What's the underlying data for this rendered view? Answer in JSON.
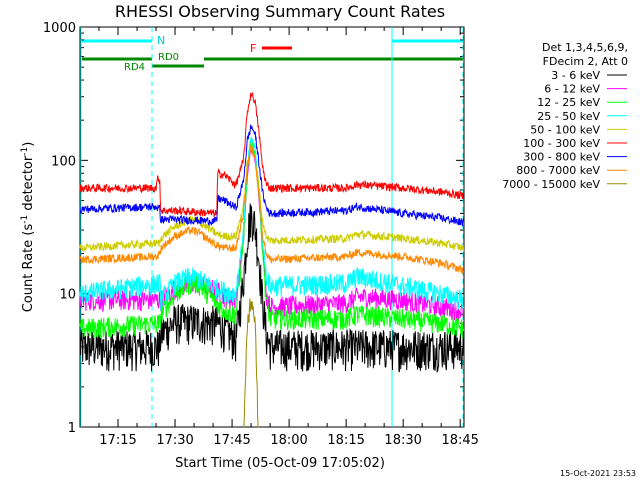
{
  "chart_data": {
    "type": "line",
    "title": "RHESSI Observing Summary Count Rates",
    "xlabel": "Start Time (05-Oct-09 17:05:02)",
    "ylabel_main": "Count Rate (s",
    "ylabel_sup1": "-1",
    "ylabel_mid": " detector",
    "ylabel_sup2": "-1",
    "ylabel_end": ")",
    "x_range_min": [
      0,
      101
    ],
    "x_ticks": [
      {
        "m": 10,
        "label": "17:15"
      },
      {
        "m": 25,
        "label": "17:30"
      },
      {
        "m": 40,
        "label": "17:45"
      },
      {
        "m": 55,
        "label": "18:00"
      },
      {
        "m": 70,
        "label": "18:15"
      },
      {
        "m": 85,
        "label": "18:30"
      },
      {
        "m": 100,
        "label": "18:45"
      }
    ],
    "y_log": true,
    "y_range": [
      1,
      1000
    ],
    "y_ticks": [
      {
        "v": 1,
        "label": "1"
      },
      {
        "v": 10,
        "label": "10"
      },
      {
        "v": 100,
        "label": "100"
      },
      {
        "v": 1000,
        "label": "1000"
      }
    ],
    "legend_header": [
      "Det 1,3,4,5,6,9,",
      "FDecim 2, Att 0"
    ],
    "series": [
      {
        "name": "3 - 6 keV",
        "color": "#000000",
        "points": [
          [
            0,
            4
          ],
          [
            21,
            4
          ],
          [
            21.2,
            5
          ],
          [
            25,
            6.2
          ],
          [
            29,
            6.2
          ],
          [
            31,
            6.2
          ],
          [
            36,
            6
          ],
          [
            38,
            5.5
          ],
          [
            41,
            4.5
          ],
          [
            43,
            13
          ],
          [
            44,
            28
          ],
          [
            45,
            40
          ],
          [
            46,
            33
          ],
          [
            47,
            19
          ],
          [
            48,
            9
          ],
          [
            49,
            5
          ],
          [
            50,
            4
          ],
          [
            70,
            4
          ],
          [
            73,
            4
          ],
          [
            85,
            4
          ],
          [
            95,
            4
          ],
          [
            101,
            4
          ]
        ]
      },
      {
        "name": "6 - 12 keV",
        "color": "#ff00ff",
        "points": [
          [
            0,
            9
          ],
          [
            21,
            9
          ],
          [
            21.2,
            9
          ],
          [
            25,
            11
          ],
          [
            29,
            12
          ],
          [
            31,
            12
          ],
          [
            36,
            10.5
          ],
          [
            38,
            9.5
          ],
          [
            41,
            9
          ],
          [
            43,
            25
          ],
          [
            44,
            75
          ],
          [
            45,
            125
          ],
          [
            46,
            105
          ],
          [
            47,
            58
          ],
          [
            48,
            22
          ],
          [
            49,
            10
          ],
          [
            50,
            8
          ],
          [
            70,
            8.5
          ],
          [
            73,
            9.5
          ],
          [
            85,
            9
          ],
          [
            95,
            8
          ],
          [
            101,
            7.5
          ]
        ]
      },
      {
        "name": "12 - 25 keV",
        "color": "#00ff00",
        "points": [
          [
            0,
            5.5
          ],
          [
            21,
            6
          ],
          [
            21.2,
            7
          ],
          [
            25,
            10
          ],
          [
            29,
            12
          ],
          [
            31,
            12
          ],
          [
            36,
            8.5
          ],
          [
            38,
            7.5
          ],
          [
            41,
            7
          ],
          [
            43,
            25
          ],
          [
            44,
            80
          ],
          [
            45,
            140
          ],
          [
            46,
            115
          ],
          [
            47,
            60
          ],
          [
            48,
            22
          ],
          [
            49,
            9
          ],
          [
            50,
            6.5
          ],
          [
            70,
            6.5
          ],
          [
            73,
            7
          ],
          [
            85,
            6.5
          ],
          [
            95,
            6
          ],
          [
            101,
            5.5
          ]
        ]
      },
      {
        "name": "25 - 50 keV",
        "color": "#00ffff",
        "points": [
          [
            0,
            10
          ],
          [
            21,
            12
          ],
          [
            21.2,
            9
          ],
          [
            25,
            12
          ],
          [
            29,
            13.5
          ],
          [
            31,
            13
          ],
          [
            36,
            11
          ],
          [
            38,
            10.5
          ],
          [
            41,
            10
          ],
          [
            43,
            30
          ],
          [
            44,
            90
          ],
          [
            45,
            150
          ],
          [
            46,
            125
          ],
          [
            47,
            65
          ],
          [
            48,
            25
          ],
          [
            49,
            14
          ],
          [
            50,
            11.5
          ],
          [
            70,
            12
          ],
          [
            73,
            13.5
          ],
          [
            85,
            11.5
          ],
          [
            95,
            10
          ],
          [
            101,
            9
          ]
        ]
      },
      {
        "name": "50 - 100 keV",
        "color": "#cccc00",
        "points": [
          [
            0,
            22
          ],
          [
            21,
            24
          ],
          [
            21.2,
            26
          ],
          [
            25,
            32
          ],
          [
            29,
            36
          ],
          [
            31,
            35
          ],
          [
            36,
            28
          ],
          [
            38,
            27
          ],
          [
            41,
            27
          ],
          [
            43,
            45
          ],
          [
            44,
            95
          ],
          [
            45,
            130
          ],
          [
            46,
            110
          ],
          [
            47,
            65
          ],
          [
            48,
            35
          ],
          [
            49,
            27
          ],
          [
            50,
            25
          ],
          [
            70,
            26
          ],
          [
            73,
            28
          ],
          [
            85,
            26
          ],
          [
            95,
            24
          ],
          [
            101,
            22
          ]
        ]
      },
      {
        "name": "100 - 300 keV",
        "color": "#ff0000",
        "points": [
          [
            0,
            62
          ],
          [
            20,
            62
          ],
          [
            20.5,
            75
          ],
          [
            21,
            70
          ],
          [
            21.2,
            42
          ],
          [
            25,
            42
          ],
          [
            36,
            40
          ],
          [
            36.2,
            80
          ],
          [
            38,
            78
          ],
          [
            41,
            65
          ],
          [
            43,
            100
          ],
          [
            44,
            230
          ],
          [
            45,
            320
          ],
          [
            46,
            280
          ],
          [
            47,
            170
          ],
          [
            48,
            90
          ],
          [
            49,
            66
          ],
          [
            50,
            62
          ],
          [
            70,
            62
          ],
          [
            73,
            66
          ],
          [
            85,
            62
          ],
          [
            95,
            58
          ],
          [
            101,
            54
          ]
        ]
      },
      {
        "name": "300 - 800 keV",
        "color": "#0000ff",
        "points": [
          [
            0,
            43
          ],
          [
            20,
            45
          ],
          [
            21,
            43
          ],
          [
            21.2,
            36
          ],
          [
            25,
            36
          ],
          [
            36,
            35
          ],
          [
            36.2,
            52
          ],
          [
            38,
            50
          ],
          [
            41,
            44
          ],
          [
            43,
            70
          ],
          [
            44,
            140
          ],
          [
            45,
            180
          ],
          [
            46,
            160
          ],
          [
            47,
            100
          ],
          [
            48,
            58
          ],
          [
            49,
            44
          ],
          [
            50,
            40
          ],
          [
            70,
            42
          ],
          [
            73,
            45
          ],
          [
            85,
            40
          ],
          [
            95,
            37
          ],
          [
            101,
            34
          ]
        ]
      },
      {
        "name": "800 - 7000 keV",
        "color": "#ff8800",
        "points": [
          [
            0,
            18
          ],
          [
            20,
            19
          ],
          [
            21,
            20
          ],
          [
            21.2,
            22
          ],
          [
            25,
            27
          ],
          [
            29,
            30
          ],
          [
            31,
            29
          ],
          [
            36,
            23
          ],
          [
            38,
            22
          ],
          [
            41,
            22
          ],
          [
            43,
            40
          ],
          [
            44,
            90
          ],
          [
            45,
            125
          ],
          [
            46,
            105
          ],
          [
            47,
            60
          ],
          [
            48,
            28
          ],
          [
            49,
            20
          ],
          [
            50,
            18
          ],
          [
            70,
            19
          ],
          [
            73,
            20.5
          ],
          [
            85,
            19
          ],
          [
            95,
            17
          ],
          [
            101,
            15
          ]
        ]
      },
      {
        "name": "7000 - 15000 keV",
        "color": "#998800",
        "points": [
          [
            43,
            0.7
          ],
          [
            43.6,
            2.5
          ],
          [
            44,
            6
          ],
          [
            45,
            9.5
          ],
          [
            46,
            7
          ],
          [
            46.6,
            2
          ],
          [
            47,
            0.7
          ]
        ]
      }
    ],
    "ticks_bar_top": "N",
    "ticks_bar_rd0": "RD0",
    "ticks_bar_rd4": "RD4",
    "ticks_bar_f": "F",
    "night_intervals": [
      [
        0,
        0.5
      ],
      [
        21,
        21.2
      ],
      [
        86,
        86.2
      ],
      [
        100,
        100.2
      ]
    ],
    "timestamp": "15-Oct-2021 23:53"
  }
}
